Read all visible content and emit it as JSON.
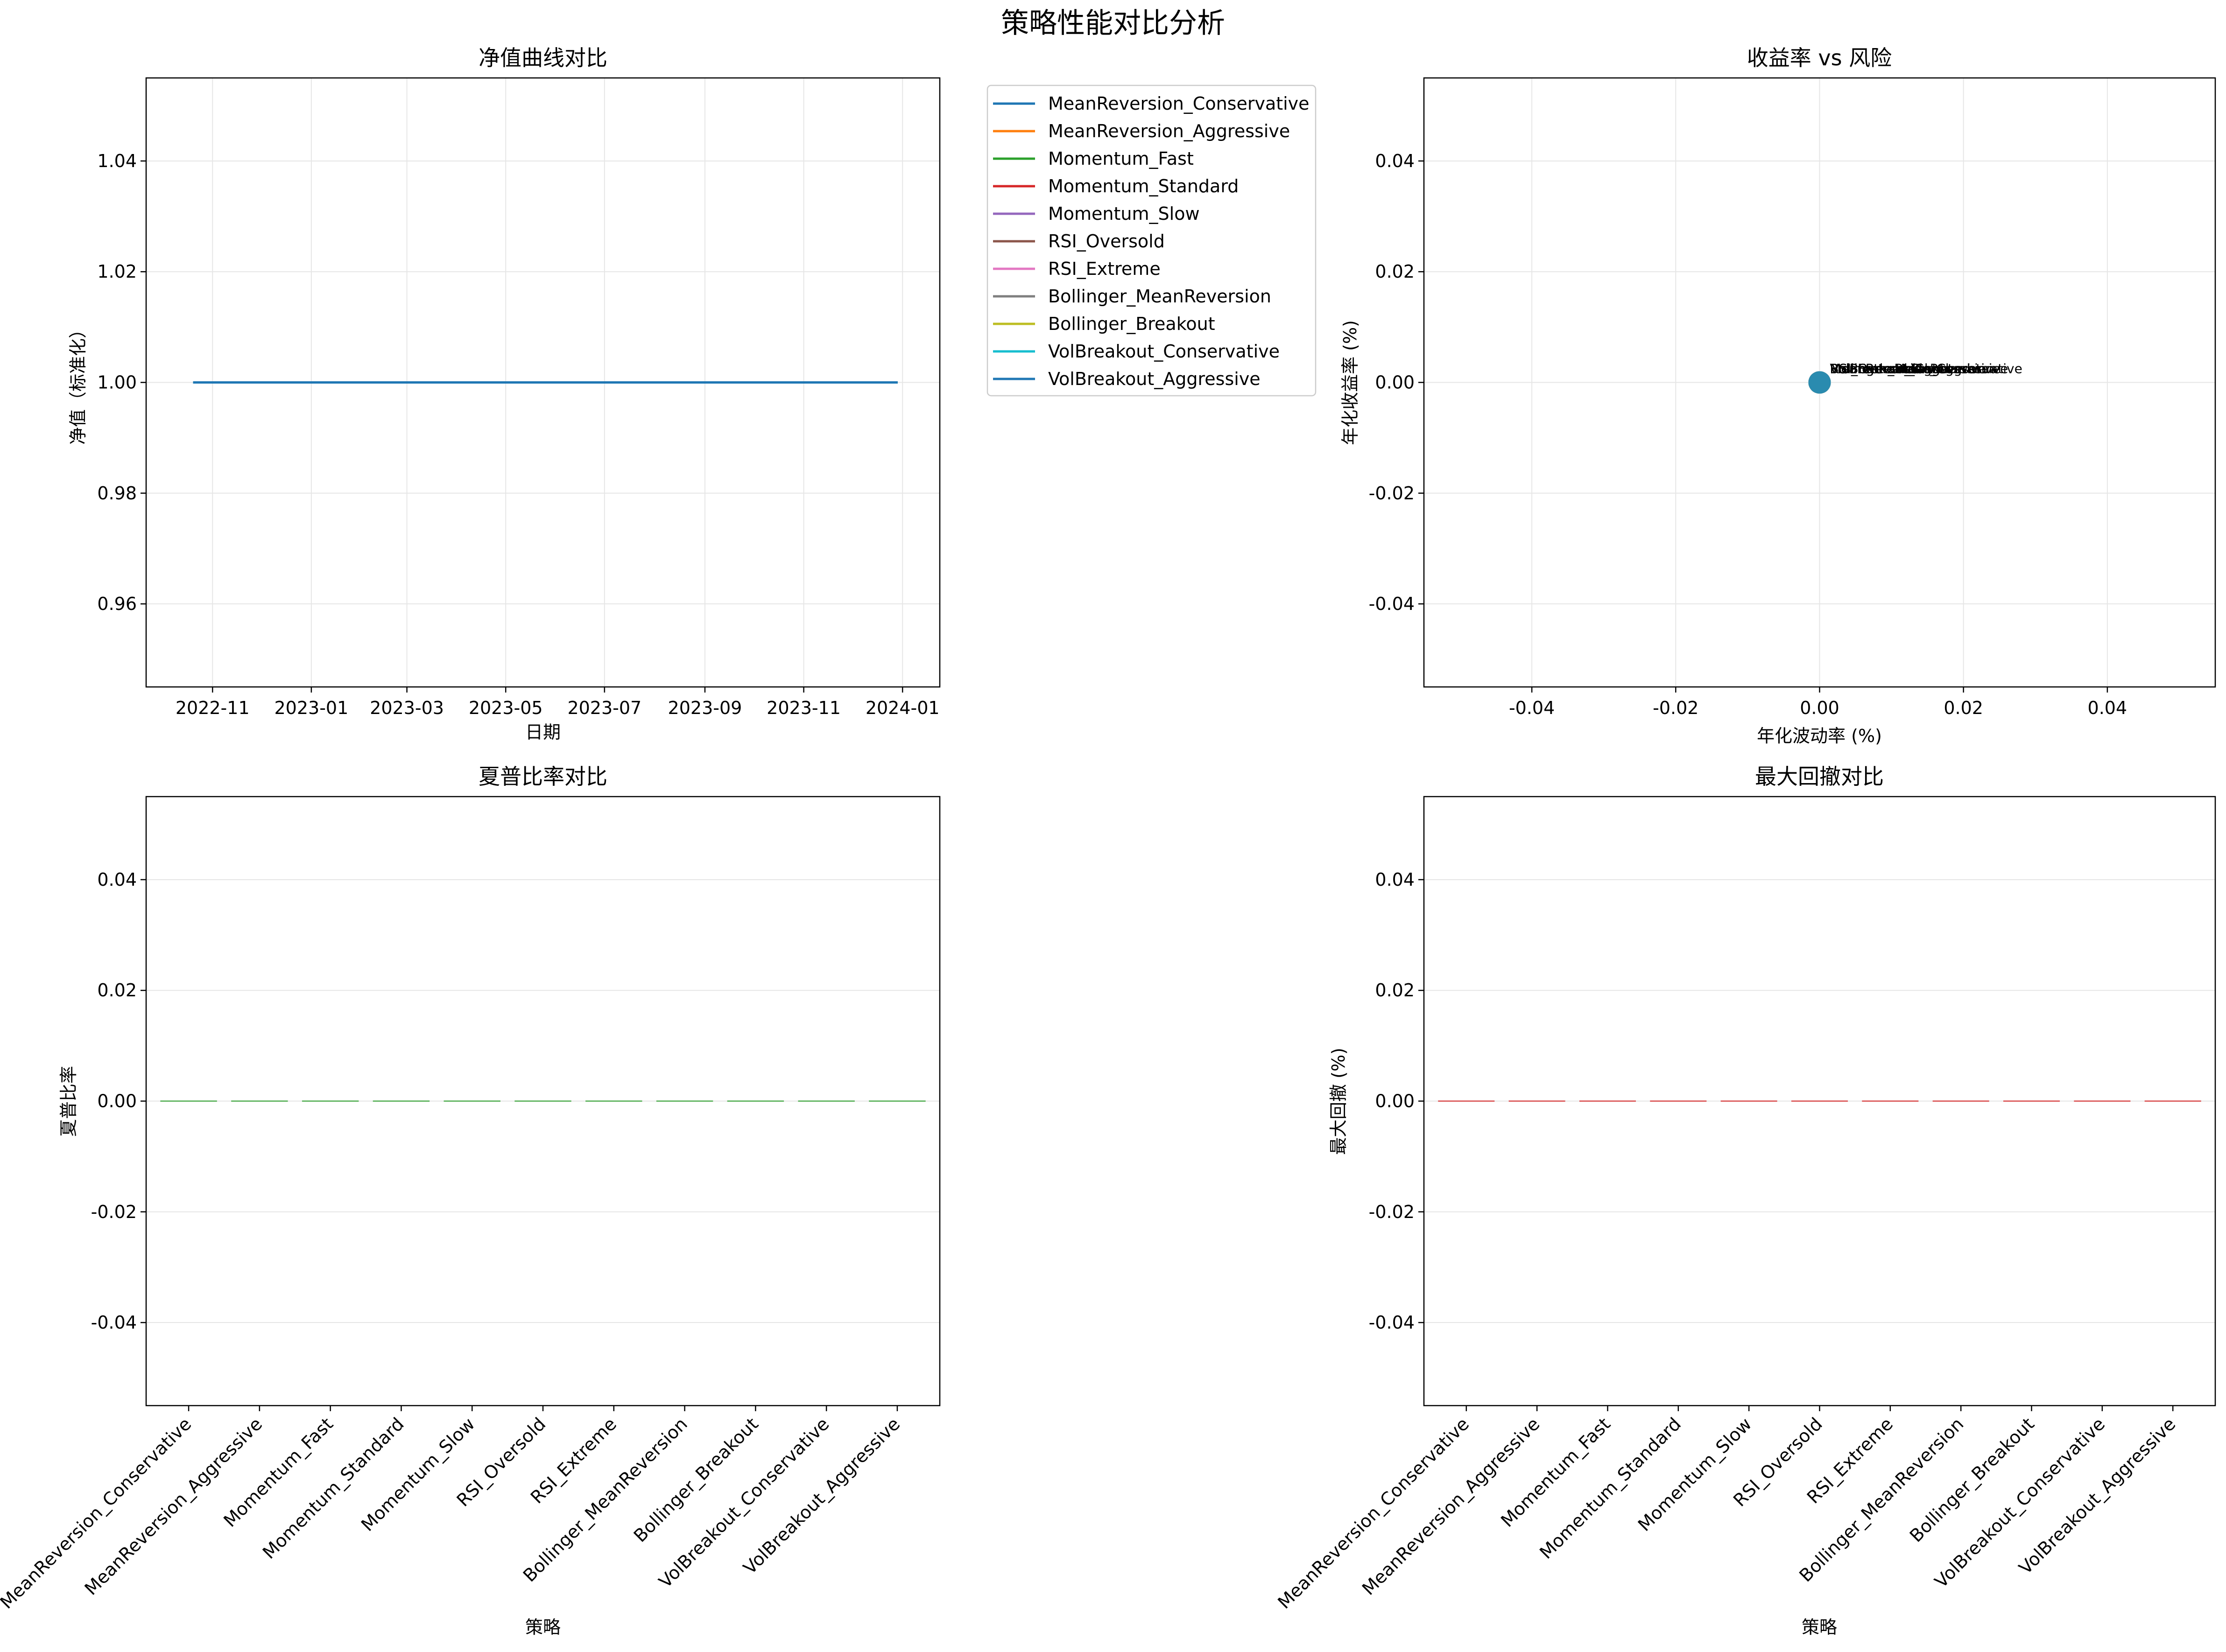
{
  "figure": {
    "title": "策略性能对比分析"
  },
  "strategies": [
    "MeanReversion_Conservative",
    "MeanReversion_Aggressive",
    "Momentum_Fast",
    "Momentum_Standard",
    "Momentum_Slow",
    "RSI_Oversold",
    "RSI_Extreme",
    "Bollinger_MeanReversion",
    "Bollinger_Breakout",
    "VolBreakout_Conservative",
    "VolBreakout_Aggressive"
  ],
  "colors": [
    "#1f77b4",
    "#ff7f0e",
    "#2ca02c",
    "#d62728",
    "#9467bd",
    "#8c564b",
    "#e377c2",
    "#7f7f7f",
    "#bcbd22",
    "#17becf",
    "#1f77b4"
  ],
  "chart_data": [
    {
      "type": "line",
      "title": "净值曲线对比",
      "xlabel": "日期",
      "ylabel": "净值（标准化）",
      "x_range": [
        "2022-10-20",
        "2023-12-29"
      ],
      "xlim": [
        "2022-09-21",
        "2024-01-24"
      ],
      "ylim": [
        0.945,
        1.055
      ],
      "xticks": [
        "2022-11",
        "2023-01",
        "2023-03",
        "2023-05",
        "2023-07",
        "2023-09",
        "2023-11",
        "2024-01"
      ],
      "yticks": [
        "0.96",
        "0.98",
        "1.00",
        "1.02",
        "1.04"
      ],
      "series_value": 1.0,
      "grid": true,
      "legend": "outside-right"
    },
    {
      "type": "scatter",
      "title": "收益率 vs 风险",
      "xlabel": "年化波动率 (%)",
      "ylabel": "年化收益率 (%)",
      "xlim": [
        -0.055,
        0.055
      ],
      "ylim": [
        -0.055,
        0.055
      ],
      "xticks": [
        "-0.04",
        "-0.02",
        "0.00",
        "0.02",
        "0.04"
      ],
      "yticks": [
        "-0.04",
        "-0.02",
        "0.00",
        "0.02",
        "0.04"
      ],
      "x": [
        0,
        0,
        0,
        0,
        0,
        0,
        0,
        0,
        0,
        0,
        0
      ],
      "y": [
        0,
        0,
        0,
        0,
        0,
        0,
        0,
        0,
        0,
        0,
        0
      ],
      "grid": true
    },
    {
      "type": "bar",
      "title": "夏普比率对比",
      "xlabel": "策略",
      "ylabel": "夏普比率",
      "ylim": [
        -0.055,
        0.055
      ],
      "yticks": [
        "-0.04",
        "-0.02",
        "0.00",
        "0.02",
        "0.04"
      ],
      "values": [
        0,
        0,
        0,
        0,
        0,
        0,
        0,
        0,
        0,
        0,
        0
      ],
      "bar_color": "#2ca02c",
      "grid": true
    },
    {
      "type": "bar",
      "title": "最大回撤对比",
      "xlabel": "策略",
      "ylabel": "最大回撤 (%)",
      "ylim": [
        -0.055,
        0.055
      ],
      "yticks": [
        "-0.04",
        "-0.02",
        "0.00",
        "0.02",
        "0.04"
      ],
      "values": [
        0,
        0,
        0,
        0,
        0,
        0,
        0,
        0,
        0,
        0,
        0
      ],
      "bar_color": "#d62728",
      "grid": true
    }
  ]
}
